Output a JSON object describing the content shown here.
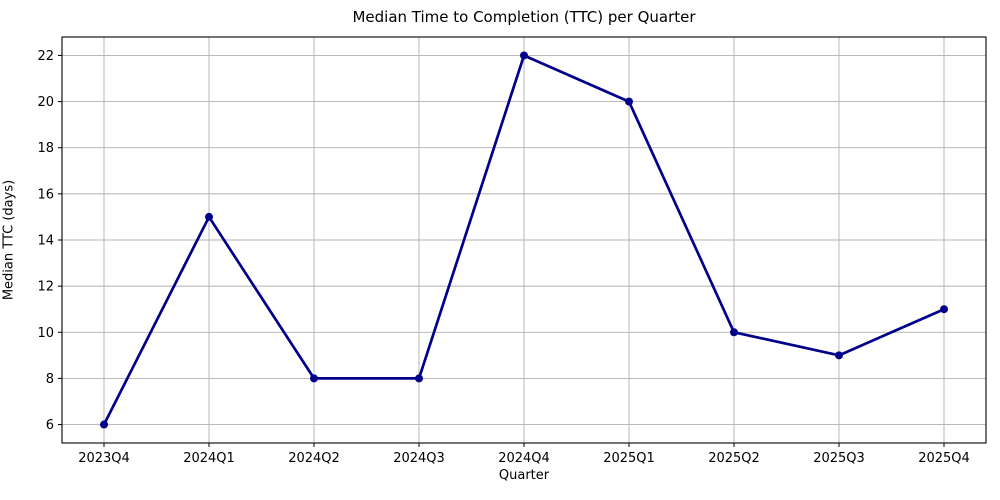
{
  "chart_data": {
    "type": "line",
    "title": "Median Time to Completion (TTC) per Quarter",
    "xlabel": "Quarter",
    "ylabel": "Median TTC (days)",
    "categories": [
      "2023Q4",
      "2024Q1",
      "2024Q2",
      "2024Q3",
      "2024Q4",
      "2025Q1",
      "2025Q2",
      "2025Q3",
      "2025Q4"
    ],
    "series": [
      {
        "name": "Median TTC (days)",
        "values": [
          6,
          15,
          8,
          8,
          22,
          20,
          10,
          9,
          11
        ]
      }
    ],
    "yticks": [
      6,
      8,
      10,
      12,
      14,
      16,
      18,
      20,
      22
    ],
    "ylim": [
      5.2,
      22.8
    ],
    "xlim": [
      -0.4,
      8.4
    ],
    "grid": true,
    "legend": "none",
    "line_color": "#00008B",
    "marker": "circle",
    "marker_radius": 4,
    "line_width": 2.7,
    "grid_color": "#b0b0b0",
    "spine_color": "#000000",
    "background_color": "#ffffff"
  }
}
